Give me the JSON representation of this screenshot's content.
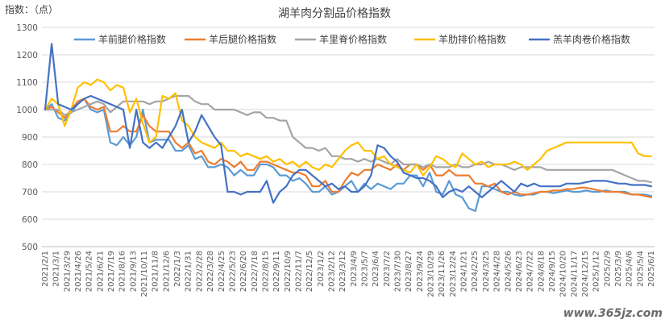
{
  "chart_data": {
    "type": "line",
    "title": "湖羊肉分割品价格指数",
    "ylabel": "指数：（点）",
    "xlabel": "",
    "ylim": [
      500,
      1300
    ],
    "yticks": [
      500,
      600,
      700,
      800,
      900,
      1000,
      1100,
      1200,
      1300
    ],
    "grid": true,
    "legend_position": "top",
    "x_tick_labels": [
      "2021/2/1",
      "2021/3/1",
      "2021/3/29",
      "2021/4/26",
      "2021/5/24",
      "2021/6/21",
      "2021/7/19",
      "2021/8/16",
      "2021/9/13",
      "2021/10/11",
      "2021/11/8",
      "2021/12/6",
      "2022/1/3",
      "2022/1/31",
      "2022/2/28",
      "2022/3/28",
      "2022/4/25",
      "2022/5/23",
      "2022/6/20",
      "2022/7/18",
      "2022/8/15",
      "2022/9/11",
      "2022/10/9",
      "2022/11/7",
      "2022/12/5",
      "2023/1/2",
      "2023/2/12",
      "2023/3/12",
      "2023/4/9",
      "2023/5/7",
      "2023/6/4",
      "2023/7/2",
      "2023/7/30",
      "2023/8/27",
      "2023/9/24",
      "2023/10/29",
      "2023/11/26",
      "2023/12/24",
      "2024/1/21",
      "2024/2/25",
      "2024/3/25",
      "2024/4/28",
      "2024/5/26",
      "2024/6/23",
      "2024/7/22",
      "2024/8/18",
      "2024/9/15",
      "2024/10/20",
      "2024/11/17",
      "2024/12/15",
      "2025/1/12",
      "2025/2/9",
      "2025/3/9",
      "2025/4/6",
      "2025/5/4",
      "2025/6/1"
    ],
    "series": [
      {
        "name": "羊前腿价格指数",
        "color": "#5B9BD5",
        "values": [
          1000,
          1020,
          970,
          960,
          990,
          1020,
          1040,
          1000,
          990,
          1000,
          880,
          870,
          900,
          870,
          900,
          1000,
          880,
          890,
          890,
          890,
          850,
          850,
          870,
          820,
          830,
          790,
          790,
          800,
          790,
          760,
          780,
          760,
          760,
          800,
          800,
          790,
          760,
          760,
          740,
          750,
          730,
          700,
          700,
          720,
          690,
          700,
          720,
          740,
          700,
          730,
          710,
          730,
          720,
          710,
          730,
          730,
          760,
          760,
          720,
          770,
          700,
          690,
          740,
          690,
          680,
          640,
          630,
          720,
          720,
          710,
          700,
          700,
          690,
          685,
          690,
          690,
          700,
          700,
          695,
          700,
          705,
          700,
          700,
          705,
          700,
          700,
          705,
          700,
          700,
          700,
          690,
          690,
          690,
          685
        ]
      },
      {
        "name": "羊后腿价格指数",
        "color": "#ED7D31",
        "values": [
          1000,
          1010,
          990,
          970,
          1000,
          1030,
          1040,
          1010,
          1000,
          1010,
          920,
          920,
          940,
          920,
          920,
          980,
          940,
          920,
          920,
          920,
          880,
          860,
          880,
          840,
          850,
          810,
          800,
          820,
          810,
          790,
          810,
          780,
          780,
          810,
          810,
          800,
          790,
          780,
          770,
          770,
          760,
          720,
          720,
          740,
          700,
          700,
          740,
          770,
          760,
          780,
          780,
          800,
          790,
          780,
          800,
          780,
          800,
          800,
          780,
          800,
          760,
          760,
          780,
          760,
          760,
          760,
          730,
          730,
          720,
          730,
          700,
          690,
          700,
          690,
          690,
          695,
          700,
          700,
          705,
          705,
          710,
          710,
          715,
          715,
          710,
          705,
          700,
          700,
          700,
          695,
          690,
          690,
          685,
          680
        ]
      },
      {
        "name": "羊里脊价格指数",
        "color": "#A5A5A5",
        "values": [
          1000,
          1000,
          1000,
          980,
          990,
          1000,
          1010,
          1020,
          1030,
          1020,
          990,
          1010,
          1030,
          1030,
          1030,
          1030,
          1020,
          1030,
          1030,
          1040,
          1050,
          1050,
          1050,
          1030,
          1020,
          1020,
          1000,
          1000,
          1000,
          1000,
          990,
          980,
          990,
          990,
          970,
          970,
          960,
          960,
          900,
          880,
          860,
          860,
          850,
          860,
          830,
          830,
          820,
          820,
          810,
          820,
          810,
          820,
          810,
          800,
          820,
          800,
          800,
          800,
          790,
          800,
          790,
          790,
          790,
          800,
          790,
          790,
          800,
          800,
          810,
          800,
          800,
          790,
          780,
          790,
          790,
          790,
          790,
          780,
          780,
          780,
          780,
          780,
          780,
          780,
          780,
          780,
          780,
          780,
          770,
          760,
          750,
          740,
          740,
          735
        ]
      },
      {
        "name": "羊肋排价格指数",
        "color": "#FFC000",
        "values": [
          1000,
          1040,
          1020,
          940,
          1000,
          1080,
          1100,
          1090,
          1110,
          1100,
          1070,
          1090,
          1080,
          990,
          1040,
          950,
          880,
          900,
          1050,
          1040,
          1060,
          960,
          940,
          900,
          880,
          870,
          860,
          880,
          850,
          850,
          830,
          840,
          830,
          820,
          830,
          810,
          820,
          800,
          810,
          790,
          810,
          790,
          780,
          800,
          790,
          820,
          850,
          870,
          880,
          850,
          850,
          820,
          830,
          800,
          790,
          780,
          770,
          800,
          760,
          790,
          830,
          820,
          800,
          790,
          840,
          820,
          800,
          810,
          790,
          800,
          800,
          800,
          810,
          800,
          780,
          800,
          820,
          850,
          860,
          870,
          880,
          880,
          880,
          880,
          880,
          880,
          880,
          880,
          880,
          880,
          880,
          840,
          830,
          830
        ]
      },
      {
        "name": "羔羊肉卷价格指数",
        "color": "#4472C4",
        "values": [
          1000,
          1240,
          1020,
          1010,
          1000,
          1020,
          1040,
          1050,
          1040,
          1030,
          1020,
          1010,
          1000,
          860,
          1000,
          880,
          860,
          880,
          860,
          900,
          940,
          1000,
          880,
          920,
          980,
          940,
          900,
          870,
          700,
          700,
          690,
          700,
          700,
          700,
          740,
          660,
          700,
          720,
          760,
          780,
          780,
          760,
          740,
          720,
          730,
          710,
          720,
          700,
          700,
          720,
          760,
          870,
          860,
          830,
          810,
          770,
          760,
          750,
          750,
          740,
          720,
          680,
          700,
          710,
          700,
          720,
          700,
          680,
          700,
          720,
          740,
          720,
          700,
          730,
          720,
          730,
          720,
          720,
          720,
          720,
          730,
          730,
          730,
          735,
          740,
          740,
          740,
          735,
          730,
          730,
          725,
          725,
          725,
          720
        ]
      }
    ]
  },
  "watermark": "www.365jz.com"
}
